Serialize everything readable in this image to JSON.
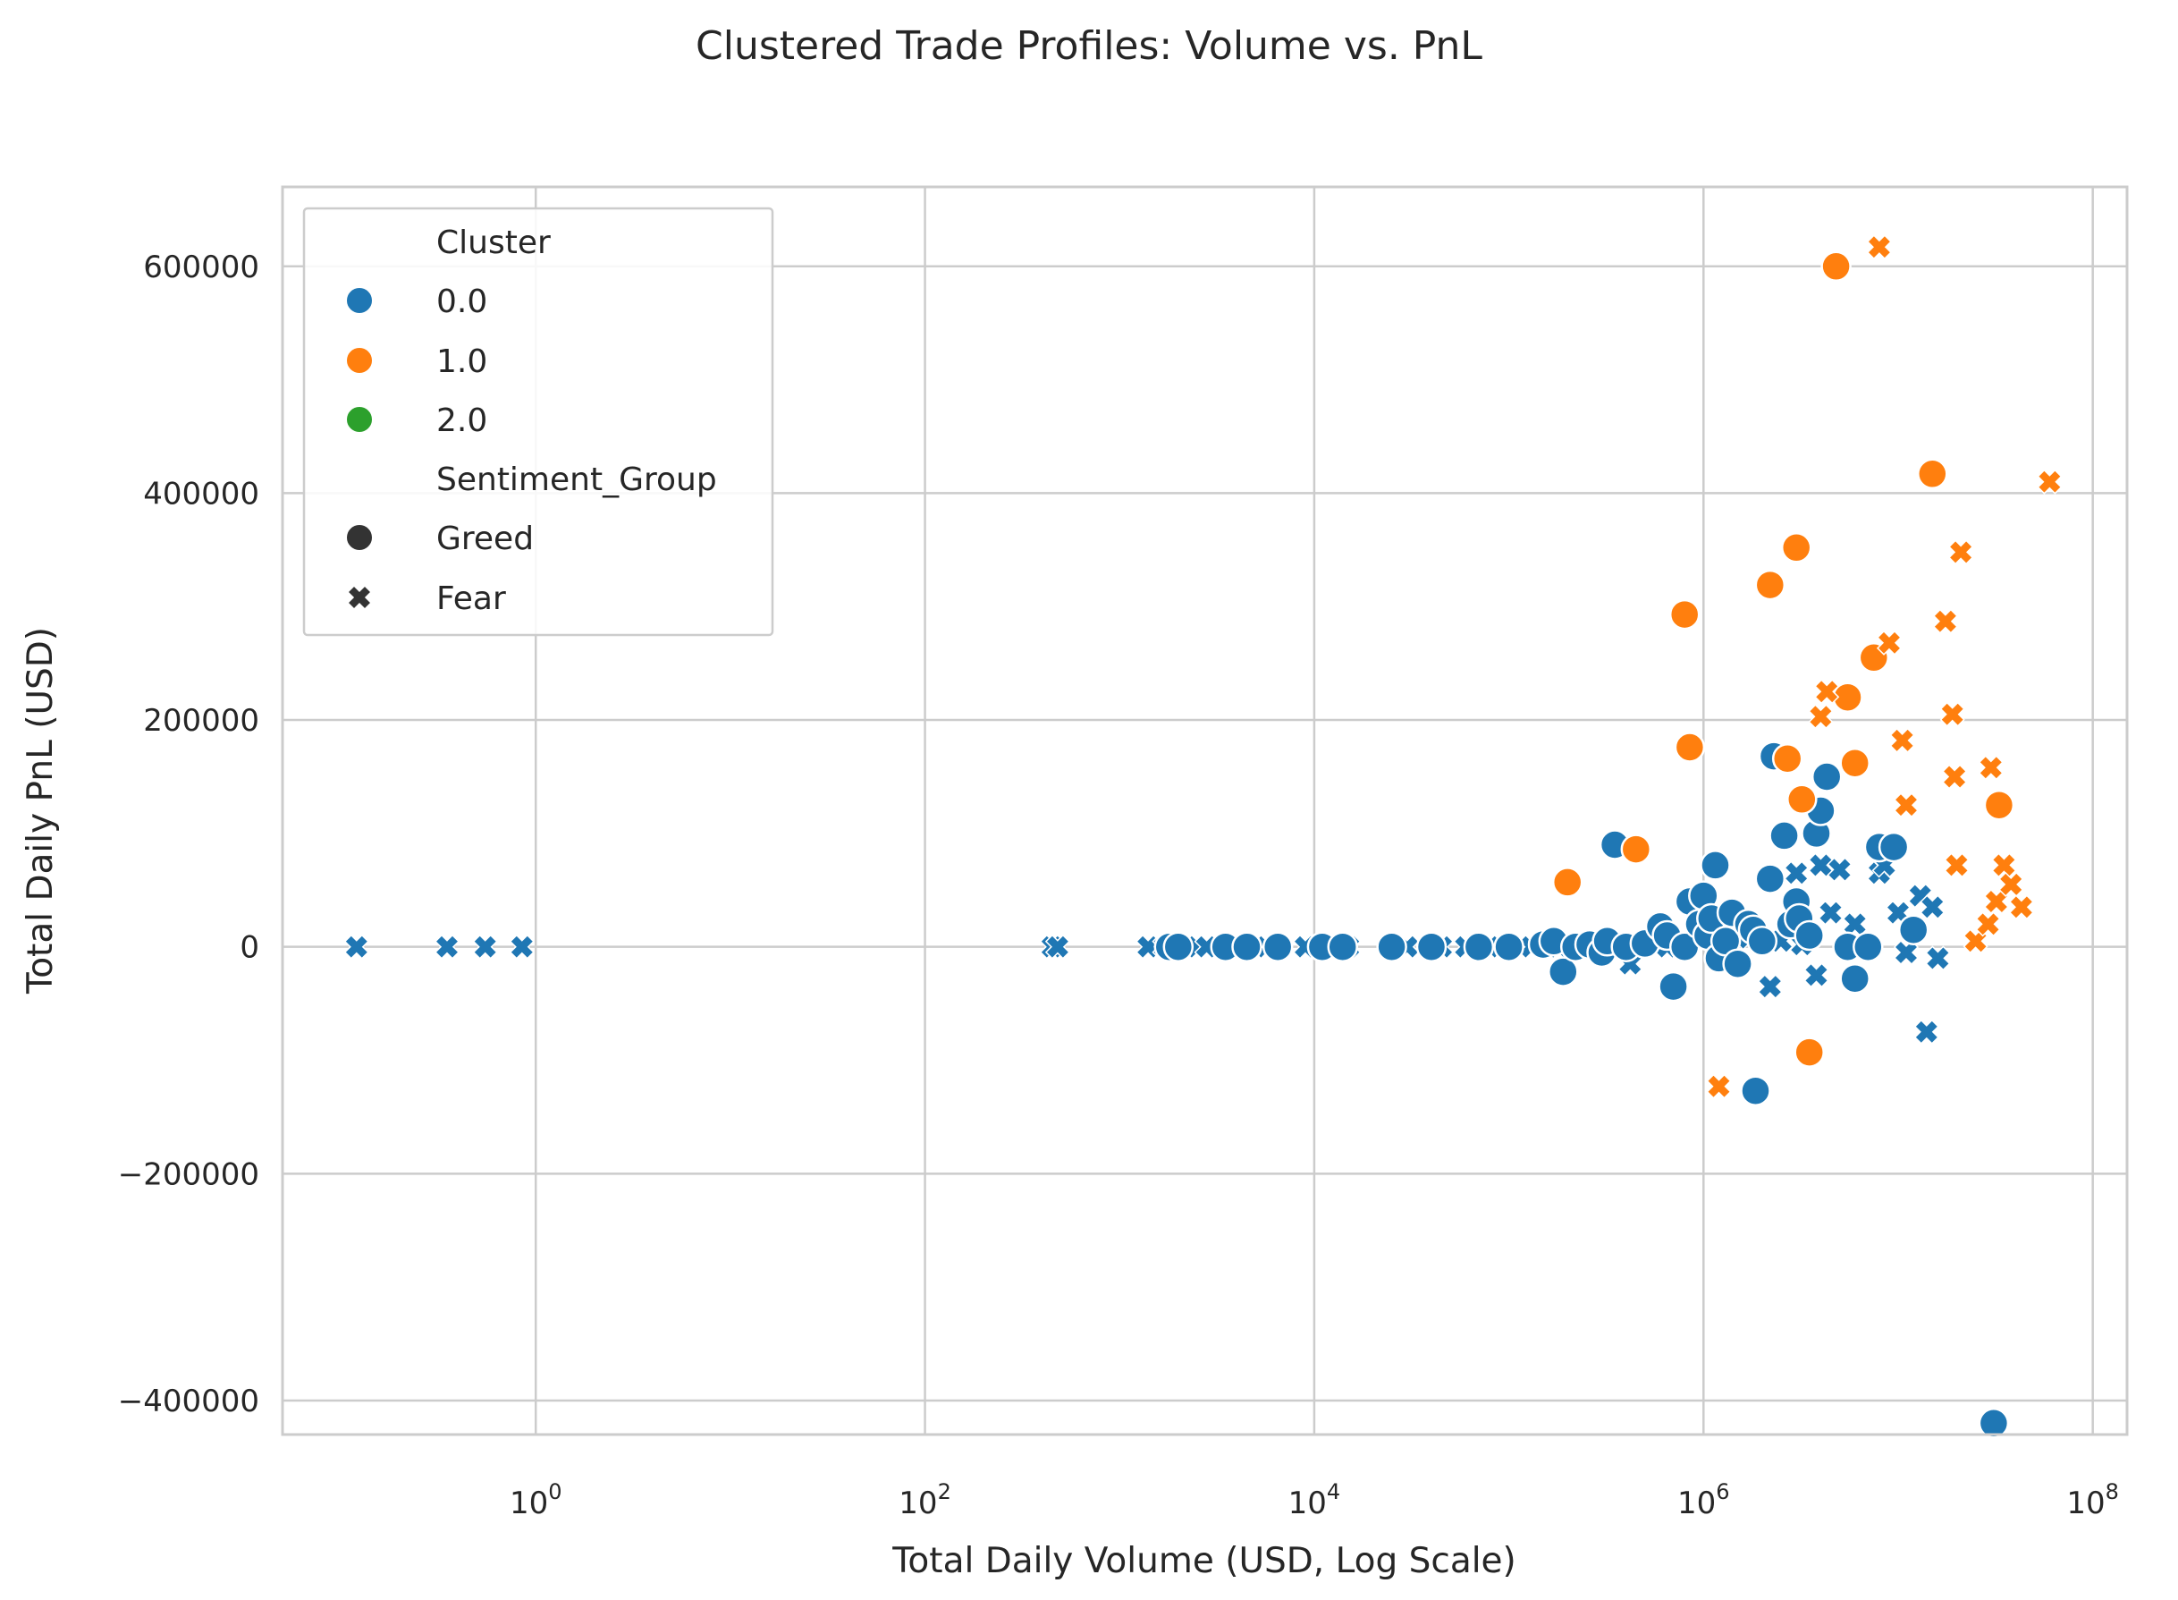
{
  "chart_data": {
    "type": "scatter",
    "title": "Clustered Trade Profiles: Volume vs. PnL",
    "xlabel": "Total Daily Volume (USD, Log Scale)",
    "ylabel": "Total Daily PnL (USD)",
    "xscale": "log",
    "xlim": [
      0.05,
      150000000
    ],
    "ylim": [
      -430000,
      670000
    ],
    "x_ticks": [
      {
        "value": 1,
        "base": "10",
        "exp": "0"
      },
      {
        "value": 100,
        "base": "10",
        "exp": "2"
      },
      {
        "value": 10000,
        "base": "10",
        "exp": "4"
      },
      {
        "value": 1000000,
        "base": "10",
        "exp": "6"
      },
      {
        "value": 100000000,
        "base": "10",
        "exp": "8"
      }
    ],
    "y_ticks": [
      {
        "value": 600000,
        "label": "600000"
      },
      {
        "value": 400000,
        "label": "400000"
      },
      {
        "value": 200000,
        "label": "200000"
      },
      {
        "value": 0,
        "label": "0"
      },
      {
        "value": -200000,
        "label": "−200000"
      },
      {
        "value": -400000,
        "label": "−400000"
      }
    ],
    "grid": true,
    "legend_position": "top-left",
    "legend": {
      "hue_title": "Cluster",
      "hue_entries": [
        {
          "label": "0.0",
          "color": "#1f77b4"
        },
        {
          "label": "1.0",
          "color": "#ff7f0e"
        },
        {
          "label": "2.0",
          "color": "#2ca02c"
        }
      ],
      "style_title": "Sentiment_Group",
      "style_entries": [
        {
          "label": "Greed",
          "marker": "circle"
        },
        {
          "label": "Fear",
          "marker": "x"
        }
      ]
    },
    "colors": {
      "0.0": "#1f77b4",
      "1.0": "#ff7f0e",
      "2.0": "#2ca02c"
    },
    "series": [
      {
        "cluster": "0.0",
        "sentiment": "Fear",
        "points": [
          [
            0.12,
            0
          ],
          [
            0.35,
            0
          ],
          [
            0.55,
            0
          ],
          [
            0.85,
            0
          ],
          [
            450,
            0
          ],
          [
            480,
            0
          ],
          [
            1400,
            0
          ],
          [
            1700,
            0
          ],
          [
            2500,
            0
          ],
          [
            2800,
            0
          ],
          [
            5000,
            0
          ],
          [
            9000,
            0
          ],
          [
            15000,
            0
          ],
          [
            30000,
            0
          ],
          [
            45000,
            0
          ],
          [
            60000,
            0
          ],
          [
            90000,
            0
          ],
          [
            130000,
            0
          ],
          [
            180000,
            0
          ],
          [
            420000,
            -15000
          ],
          [
            650000,
            0
          ],
          [
            800000,
            5000
          ],
          [
            1200000,
            3000
          ],
          [
            1500000,
            8000
          ],
          [
            2200000,
            -35000
          ],
          [
            2500000,
            5000
          ],
          [
            3000000,
            65000
          ],
          [
            3200000,
            2000
          ],
          [
            3800000,
            -25000
          ],
          [
            4000000,
            72000
          ],
          [
            4500000,
            30000
          ],
          [
            5000000,
            68000
          ],
          [
            6000000,
            20000
          ],
          [
            8000000,
            65000
          ],
          [
            8500000,
            72000
          ],
          [
            10000000,
            30000
          ],
          [
            11000000,
            -5000
          ],
          [
            13000000,
            45000
          ],
          [
            14000000,
            -75000
          ],
          [
            15000000,
            35000
          ],
          [
            16000000,
            -10000
          ]
        ]
      },
      {
        "cluster": "0.0",
        "sentiment": "Greed",
        "points": [
          [
            1800,
            0
          ],
          [
            2000,
            0
          ],
          [
            3500,
            0
          ],
          [
            4500,
            0
          ],
          [
            6500,
            0
          ],
          [
            11000,
            0
          ],
          [
            14000,
            0
          ],
          [
            25000,
            0
          ],
          [
            40000,
            0
          ],
          [
            70000,
            0
          ],
          [
            100000,
            0
          ],
          [
            150000,
            2000
          ],
          [
            170000,
            5000
          ],
          [
            190000,
            -22000
          ],
          [
            220000,
            0
          ],
          [
            260000,
            2000
          ],
          [
            300000,
            -5000
          ],
          [
            320000,
            5000
          ],
          [
            350000,
            90000
          ],
          [
            400000,
            0
          ],
          [
            500000,
            3000
          ],
          [
            600000,
            18000
          ],
          [
            650000,
            10000
          ],
          [
            700000,
            -35000
          ],
          [
            800000,
            0
          ],
          [
            850000,
            40000
          ],
          [
            950000,
            20000
          ],
          [
            1000000,
            45000
          ],
          [
            1050000,
            10000
          ],
          [
            1100000,
            25000
          ],
          [
            1150000,
            72000
          ],
          [
            1200000,
            -10000
          ],
          [
            1300000,
            5000
          ],
          [
            1400000,
            30000
          ],
          [
            1500000,
            -15000
          ],
          [
            1700000,
            20000
          ],
          [
            1800000,
            15000
          ],
          [
            1850000,
            -127000
          ],
          [
            2000000,
            5000
          ],
          [
            2200000,
            60000
          ],
          [
            2300000,
            168000
          ],
          [
            2600000,
            98000
          ],
          [
            2800000,
            20000
          ],
          [
            3000000,
            40000
          ],
          [
            3100000,
            25000
          ],
          [
            3500000,
            10000
          ],
          [
            3800000,
            100000
          ],
          [
            4000000,
            120000
          ],
          [
            4300000,
            150000
          ],
          [
            5500000,
            0
          ],
          [
            6000000,
            -28000
          ],
          [
            7000000,
            0
          ],
          [
            8000000,
            88000
          ],
          [
            9500000,
            88000
          ],
          [
            12000000,
            15000
          ],
          [
            31000000,
            -420000
          ]
        ]
      },
      {
        "cluster": "1.0",
        "sentiment": "Greed",
        "points": [
          [
            200000,
            57000
          ],
          [
            450000,
            86000
          ],
          [
            800000,
            293000
          ],
          [
            850000,
            176000
          ],
          [
            2200000,
            319000
          ],
          [
            2700000,
            166000
          ],
          [
            3000000,
            352000
          ],
          [
            3200000,
            130000
          ],
          [
            3500000,
            -93000
          ],
          [
            4800000,
            600000
          ],
          [
            5500000,
            220000
          ],
          [
            6000000,
            162000
          ],
          [
            7500000,
            255000
          ],
          [
            15000000,
            417000
          ],
          [
            33000000,
            125000
          ]
        ]
      },
      {
        "cluster": "1.0",
        "sentiment": "Fear",
        "points": [
          [
            1200000,
            -123000
          ],
          [
            4000000,
            203000
          ],
          [
            4300000,
            225000
          ],
          [
            8000000,
            617000
          ],
          [
            9000000,
            268000
          ],
          [
            10500000,
            182000
          ],
          [
            11000000,
            125000
          ],
          [
            17500000,
            287000
          ],
          [
            19000000,
            205000
          ],
          [
            19500000,
            150000
          ],
          [
            20000000,
            72000
          ],
          [
            21000000,
            348000
          ],
          [
            25000000,
            5000
          ],
          [
            29000000,
            20000
          ],
          [
            30000000,
            158000
          ],
          [
            32000000,
            40000
          ],
          [
            35000000,
            72000
          ],
          [
            38000000,
            55000
          ],
          [
            43000000,
            35000
          ],
          [
            60000000,
            410000
          ]
        ]
      }
    ]
  }
}
